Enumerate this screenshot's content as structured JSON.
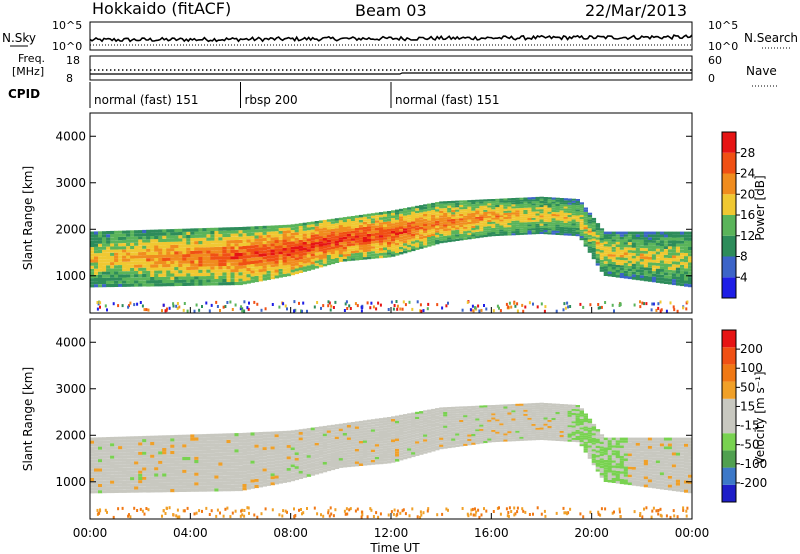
{
  "title": {
    "station": "Hokkaido (fitACF)",
    "beam": "Beam 03",
    "date": "22/Mar/2013"
  },
  "aux": {
    "nsky_label": "N.Sky",
    "nsky_ticks": [
      "10^5",
      "10^0"
    ],
    "nsearch_label": "N.Search",
    "nsearch_ticks": [
      "10^5",
      "10^0"
    ],
    "freq_label_top": "Freq.",
    "freq_label_bottom": "[MHz]",
    "freq_ticks": [
      "18",
      "8"
    ],
    "nave_label": "Nave",
    "nave_ticks": [
      "60",
      "0"
    ],
    "cpid_label": "CPID"
  },
  "cpid_segments": [
    {
      "label": "normal (fast) 151",
      "start_h": 0,
      "end_h": 6
    },
    {
      "label": "rbsp 200",
      "start_h": 6,
      "end_h": 12
    },
    {
      "label": "normal (fast) 151",
      "start_h": 12,
      "end_h": 24
    }
  ],
  "x_ticks": [
    "00:00",
    "04:00",
    "08:00",
    "12:00",
    "16:00",
    "20:00",
    "00:00"
  ],
  "x_label": "Time UT",
  "colors": {
    "power": [
      "#1e1ee6",
      "#3c64c8",
      "#2d8c5a",
      "#5ab45a",
      "#f0c832",
      "#f08c1e",
      "#f05014",
      "#e61414"
    ],
    "velocity": [
      "#1e1ec8",
      "#3c78c8",
      "#50a050",
      "#78d250",
      "#c8c8c0",
      "#c8c8c0",
      "#f0a028",
      "#f07814",
      "#f05014",
      "#e61414"
    ]
  },
  "chart_data": [
    {
      "type": "heatmap",
      "panel": "power",
      "ylabel": "Slant Range [km]",
      "x_range_h": [
        0,
        24
      ],
      "ylim": [
        200,
        4500
      ],
      "y_ticks": [
        "4000",
        "3000",
        "2000",
        "1000"
      ],
      "colorbar_label": "Power [dB]",
      "colorbar_ticks": [
        "28",
        "24",
        "20",
        "16",
        "12",
        "8",
        "4"
      ],
      "bands": [
        {
          "t": 0,
          "lo": 750,
          "hi": 1950,
          "level": 0.6
        },
        {
          "t": 6,
          "lo": 800,
          "hi": 2050,
          "level": 0.85
        },
        {
          "t": 8,
          "lo": 1000,
          "hi": 2100,
          "level": 0.9
        },
        {
          "t": 10,
          "lo": 1300,
          "hi": 2250,
          "level": 0.9
        },
        {
          "t": 12,
          "lo": 1400,
          "hi": 2400,
          "level": 0.85
        },
        {
          "t": 14,
          "lo": 1700,
          "hi": 2600,
          "level": 0.75
        },
        {
          "t": 16,
          "lo": 1850,
          "hi": 2650,
          "level": 0.7
        },
        {
          "t": 18,
          "lo": 1900,
          "hi": 2700,
          "level": 0.6
        },
        {
          "t": 19.5,
          "lo": 1850,
          "hi": 2650,
          "level": 0.55
        },
        {
          "t": 20.5,
          "lo": 1000,
          "hi": 1950,
          "level": 0.6
        },
        {
          "t": 24,
          "lo": 750,
          "hi": 1950,
          "level": 0.55
        }
      ]
    },
    {
      "type": "heatmap",
      "panel": "velocity",
      "ylabel": "Slant Range [km]",
      "x_range_h": [
        0,
        24
      ],
      "ylim": [
        200,
        4500
      ],
      "y_ticks": [
        "4000",
        "3000",
        "2000",
        "1000"
      ],
      "colorbar_label": "Velocity [m s⁻¹]",
      "colorbar_ticks": [
        "200",
        "100",
        "50",
        "15",
        "-15",
        "-50",
        "-100",
        "-200"
      ]
    }
  ]
}
